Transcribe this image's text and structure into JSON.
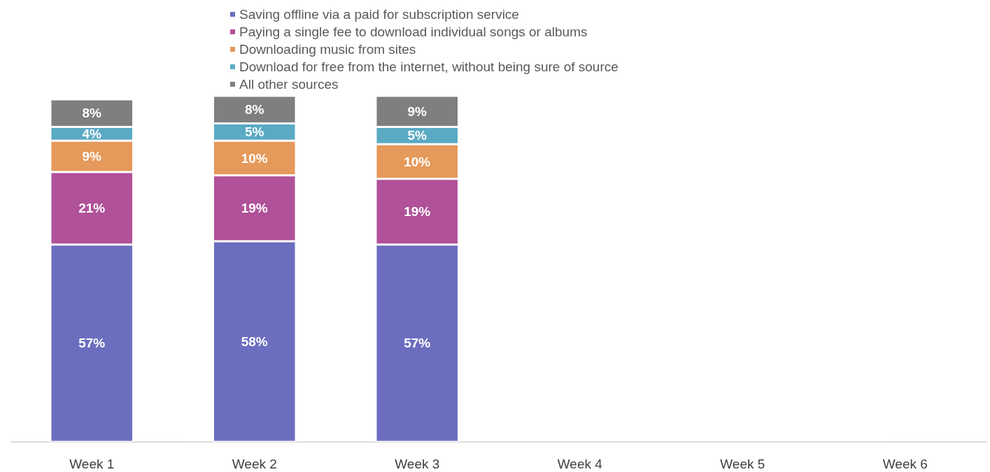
{
  "chart_data": {
    "type": "bar",
    "stacked": true,
    "legend": "top",
    "tick_labels": "x",
    "categories": [
      "Week 1",
      "Week 2",
      "Week 3",
      "Week 4",
      "Week 5",
      "Week 6"
    ],
    "series": [
      {
        "name": "Saving offline via a paid for subscription service",
        "color": "#6b6ebf",
        "values": [
          57,
          58,
          57,
          null,
          null,
          null
        ],
        "value_labels": [
          "57%",
          "58%",
          "57%",
          null,
          null,
          null
        ]
      },
      {
        "name": "Paying a single fee to download individual songs or albums",
        "color": "#b0519a",
        "values": [
          21,
          19,
          19,
          null,
          null,
          null
        ],
        "value_labels": [
          "21%",
          "19%",
          "19%",
          null,
          null,
          null
        ]
      },
      {
        "name": "Downloading music from sites",
        "color": "#e5995a",
        "values": [
          9,
          10,
          10,
          null,
          null,
          null
        ],
        "value_labels": [
          "9%",
          "10%",
          "10%",
          null,
          null,
          null
        ]
      },
      {
        "name": "Download for free from the internet, without being sure of source",
        "color": "#5aaac4",
        "values": [
          4,
          5,
          5,
          null,
          null,
          null
        ],
        "value_labels": [
          "4%",
          "5%",
          "5%",
          null,
          null,
          null
        ]
      },
      {
        "name": "All other sources",
        "color": "#7f7f7f",
        "values": [
          8,
          8,
          9,
          null,
          null,
          null
        ],
        "value_labels": [
          "8%",
          "8%",
          "9%",
          null,
          null,
          null
        ]
      }
    ]
  }
}
